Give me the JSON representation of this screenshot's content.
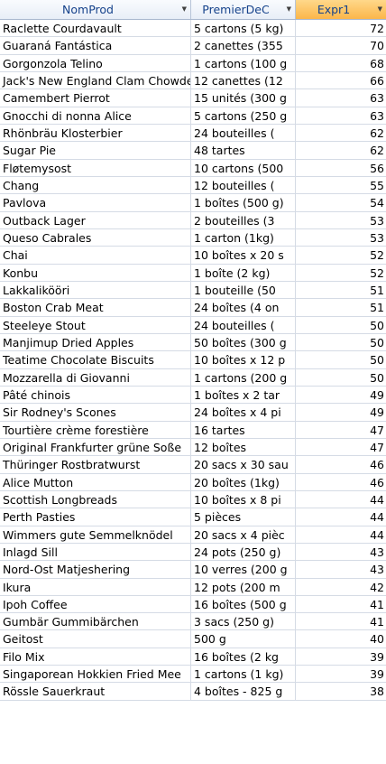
{
  "columns": [
    {
      "label": "NomProd"
    },
    {
      "label": "PremierDeC"
    },
    {
      "label": "Expr1"
    }
  ],
  "rows": [
    [
      "Raclette Courdavault",
      "5 cartons (5 kg)",
      "72"
    ],
    [
      "Guaraná Fantástica",
      "2 canettes (355",
      "70"
    ],
    [
      "Gorgonzola Telino",
      "1 cartons (100 g",
      "68"
    ],
    [
      "Jack's New England Clam Chowder",
      "12 canettes (12",
      "66"
    ],
    [
      "Camembert Pierrot",
      "15 unités (300 g",
      "63"
    ],
    [
      "Gnocchi di nonna Alice",
      "5 cartons (250 g",
      "63"
    ],
    [
      "Rhönbräu Klosterbier",
      "24 bouteilles (",
      "62"
    ],
    [
      "Sugar Pie",
      "48 tartes",
      "62"
    ],
    [
      "Fløtemysost",
      "10 cartons (500",
      "56"
    ],
    [
      "Chang",
      "12  bouteilles (",
      "55"
    ],
    [
      "Pavlova",
      "1 boîtes (500 g)",
      "54"
    ],
    [
      "Outback Lager",
      "2 bouteilles (3",
      "53"
    ],
    [
      "Queso Cabrales",
      "1 carton (1kg)",
      "53"
    ],
    [
      "Chai",
      "10 boîtes x 20 s",
      "52"
    ],
    [
      "Konbu",
      "1 boîte (2 kg)",
      "52"
    ],
    [
      "Lakkalikööri",
      "1 bouteille (50",
      "51"
    ],
    [
      "Boston Crab Meat",
      "24 boîtes (4 on",
      "51"
    ],
    [
      "Steeleye Stout",
      "24 bouteilles (",
      "50"
    ],
    [
      "Manjimup Dried Apples",
      "50 boîtes (300 g",
      "50"
    ],
    [
      "Teatime Chocolate Biscuits",
      "10 boîtes x 12 p",
      "50"
    ],
    [
      "Mozzarella di Giovanni",
      "1 cartons (200 g",
      "50"
    ],
    [
      "Pâté chinois",
      "1 boîtes x 2 tar",
      "49"
    ],
    [
      "Sir Rodney's Scones",
      "24 boîtes x 4 pi",
      "49"
    ],
    [
      "Tourtière crème forestière",
      "16 tartes",
      "47"
    ],
    [
      "Original Frankfurter grüne Soße",
      "12 boîtes",
      "47"
    ],
    [
      "Thüringer Rostbratwurst",
      "20 sacs x 30 sau",
      "46"
    ],
    [
      "Alice Mutton",
      "20 boîtes (1kg)",
      "46"
    ],
    [
      "Scottish Longbreads",
      "10 boîtes x 8 pi",
      "44"
    ],
    [
      "Perth Pasties",
      "5 pièces",
      "44"
    ],
    [
      "Wimmers gute Semmelknödel",
      "20 sacs x 4 pièc",
      "44"
    ],
    [
      "Inlagd Sill",
      "24 pots (250 g)",
      "43"
    ],
    [
      "Nord-Ost Matjeshering",
      "10 verres (200 g",
      "43"
    ],
    [
      "Ikura",
      "12 pots (200 m",
      "42"
    ],
    [
      "Ipoh Coffee",
      "16 boîtes (500 g",
      "41"
    ],
    [
      "Gumbär Gummibärchen",
      "3 sacs (250 g)",
      "41"
    ],
    [
      "Geitost",
      "500 g",
      "40"
    ],
    [
      "Filo Mix",
      "16 boîtes (2 kg",
      "39"
    ],
    [
      "Singaporean Hokkien Fried Mee",
      "1 cartons (1 kg)",
      "39"
    ],
    [
      "Rössle Sauerkraut",
      "4 boîtes - 825 g",
      "38"
    ]
  ]
}
